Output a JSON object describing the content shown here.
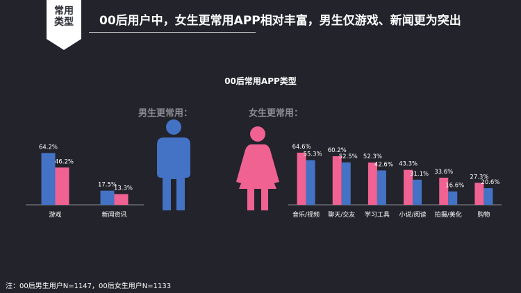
{
  "badge": {
    "line1": "常用",
    "line2": "类型"
  },
  "headline": "00后用户中，女生更常用APP相对丰富，男生仅游戏、新闻更为突出",
  "chart_title": "00后常用APP类型",
  "male_group_title": "男生更常用：",
  "female_group_title": "女生更常用：",
  "note": "注：00后男生用户N=1147，00后女生用户N=1133",
  "colors": {
    "male": "#4472c4",
    "female": "#f06292",
    "background": "#22232b"
  },
  "icons": {
    "male": "male-figure-icon",
    "female": "female-figure-icon"
  },
  "chart_data": [
    {
      "type": "bar",
      "title": "男生更常用：",
      "categories": [
        "游戏",
        "新闻资讯"
      ],
      "series": [
        {
          "color": "#4472c4",
          "values": [
            64.2,
            17.5
          ]
        },
        {
          "color": "#f06292",
          "values": [
            46.2,
            13.3
          ]
        }
      ],
      "value_labels": [
        [
          "64.2%",
          "17.5%"
        ],
        [
          "46.2%",
          "13.3%"
        ]
      ],
      "ylim": [
        0,
        70
      ],
      "unit": "%"
    },
    {
      "type": "bar",
      "title": "女生更常用：",
      "categories": [
        "音乐/视频",
        "聊天/交友",
        "学习工具",
        "小说/阅读",
        "拍摄/美化",
        "购物"
      ],
      "series": [
        {
          "color": "#f06292",
          "values": [
            64.6,
            60.2,
            52.3,
            43.3,
            33.6,
            27.3
          ]
        },
        {
          "color": "#4472c4",
          "values": [
            55.3,
            52.5,
            42.6,
            31.1,
            16.6,
            20.6
          ]
        }
      ],
      "value_labels": [
        [
          "64.6%",
          "60.2%",
          "52.3%",
          "43.3%",
          "33.6%",
          "27.3%"
        ],
        [
          "55.3%",
          "52.5%",
          "42.6%",
          "31.1%",
          "16.6%",
          "20.6%"
        ]
      ],
      "ylim": [
        0,
        70
      ],
      "unit": "%"
    }
  ]
}
